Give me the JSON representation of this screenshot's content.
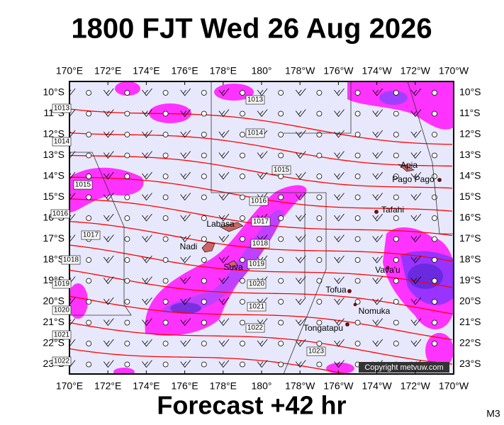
{
  "title": "1800 FJT Wed 26 Aug 2026",
  "footer": "Forecast +42 hr",
  "model": "M3",
  "copyright": "Copyright metvuw.com",
  "lon_labels": [
    "170°E",
    "172°E",
    "174°E",
    "176°E",
    "178°E",
    "180°",
    "178°W",
    "176°W",
    "174°W",
    "172°W",
    "170°W"
  ],
  "lat_labels": [
    "10°S",
    "11°S",
    "12°S",
    "13°S",
    "14°S",
    "15°S",
    "16°S",
    "17°S",
    "18°S",
    "19°S",
    "20°S",
    "21°S",
    "22°S",
    "23°S"
  ],
  "isobar_labels": [
    "1013",
    "1013",
    "1014",
    "1014",
    "1015",
    "1015",
    "1016",
    "1016",
    "1017",
    "1017",
    "1018",
    "1018",
    "1019",
    "1019",
    "1020",
    "1020",
    "1021",
    "1021",
    "1022",
    "1022",
    "1023"
  ],
  "places": [
    "Apia",
    "Pago Pago",
    "Tafahi",
    "Labasa",
    "Nadi",
    "Suva",
    "Vava'u",
    "Tofua",
    "Nomuka",
    "Tongatapu"
  ]
}
